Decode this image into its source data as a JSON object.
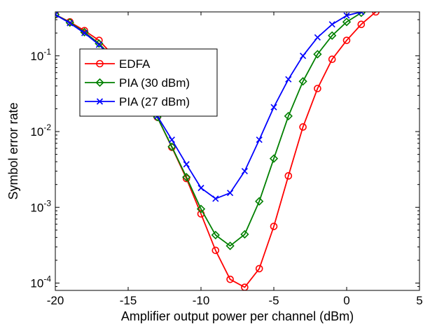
{
  "chart_data": {
    "type": "line",
    "title": "",
    "xlabel": "Amplifier output power per channel (dBm)",
    "ylabel": "Symbol error rate",
    "xlim": [
      -20,
      5
    ],
    "ylim": [
      8e-05,
      0.38
    ],
    "yscale": "log",
    "grid": false,
    "legend_position": "top-left",
    "x_ticks": [
      -20,
      -15,
      -10,
      -5,
      0,
      5
    ],
    "x_tick_labels": [
      "-20",
      "-15",
      "-10",
      "-5",
      "0",
      "5"
    ],
    "y_ticks": [
      0.0001,
      0.001,
      0.01,
      0.1
    ],
    "y_tick_bases": [
      "10",
      "10",
      "10",
      "10"
    ],
    "y_tick_exponents": [
      "-4",
      "-3",
      "-2",
      "-1"
    ],
    "series": [
      {
        "name": "EDFA",
        "color": "#ff0000",
        "marker": "circle",
        "x": [
          -20,
          -19,
          -18,
          -17,
          -16,
          -15,
          -14,
          -13,
          -12,
          -11,
          -10,
          -9,
          -8,
          -7,
          -6,
          -5,
          -4,
          -3,
          -2,
          -1,
          0,
          1,
          2
        ],
        "y": [
          0.35,
          0.28,
          0.215,
          0.16,
          0.1,
          0.055,
          0.03,
          0.0155,
          0.0062,
          0.0024,
          0.00082,
          0.00027,
          0.000112,
          8.8e-05,
          0.000155,
          0.00056,
          0.0026,
          0.0115,
          0.037,
          0.09,
          0.16,
          0.26,
          0.38
        ]
      },
      {
        "name": "PIA (30 dBm)",
        "color": "#008000",
        "marker": "diamond",
        "x": [
          -20,
          -19,
          -18,
          -17,
          -16,
          -15,
          -14,
          -13,
          -12,
          -11,
          -10,
          -9,
          -8,
          -7,
          -6,
          -5,
          -4,
          -3,
          -2,
          -1,
          0,
          1
        ],
        "y": [
          0.35,
          0.275,
          0.205,
          0.145,
          0.092,
          0.053,
          0.03,
          0.0155,
          0.0063,
          0.0025,
          0.00095,
          0.00043,
          0.00031,
          0.00044,
          0.0012,
          0.0044,
          0.016,
          0.046,
          0.105,
          0.185,
          0.28,
          0.37
        ]
      },
      {
        "name": "PIA (27 dBm)",
        "color": "#0000ff",
        "marker": "x",
        "x": [
          -20,
          -19,
          -18,
          -17,
          -16,
          -15,
          -14,
          -13,
          -12,
          -11,
          -10,
          -9,
          -8,
          -7,
          -6,
          -5,
          -4,
          -3,
          -2,
          -1,
          0,
          1
        ],
        "y": [
          0.35,
          0.27,
          0.2,
          0.14,
          0.09,
          0.052,
          0.03,
          0.016,
          0.0078,
          0.0037,
          0.0018,
          0.0013,
          0.00155,
          0.003,
          0.0078,
          0.021,
          0.049,
          0.1,
          0.175,
          0.26,
          0.34,
          0.38
        ]
      }
    ]
  }
}
